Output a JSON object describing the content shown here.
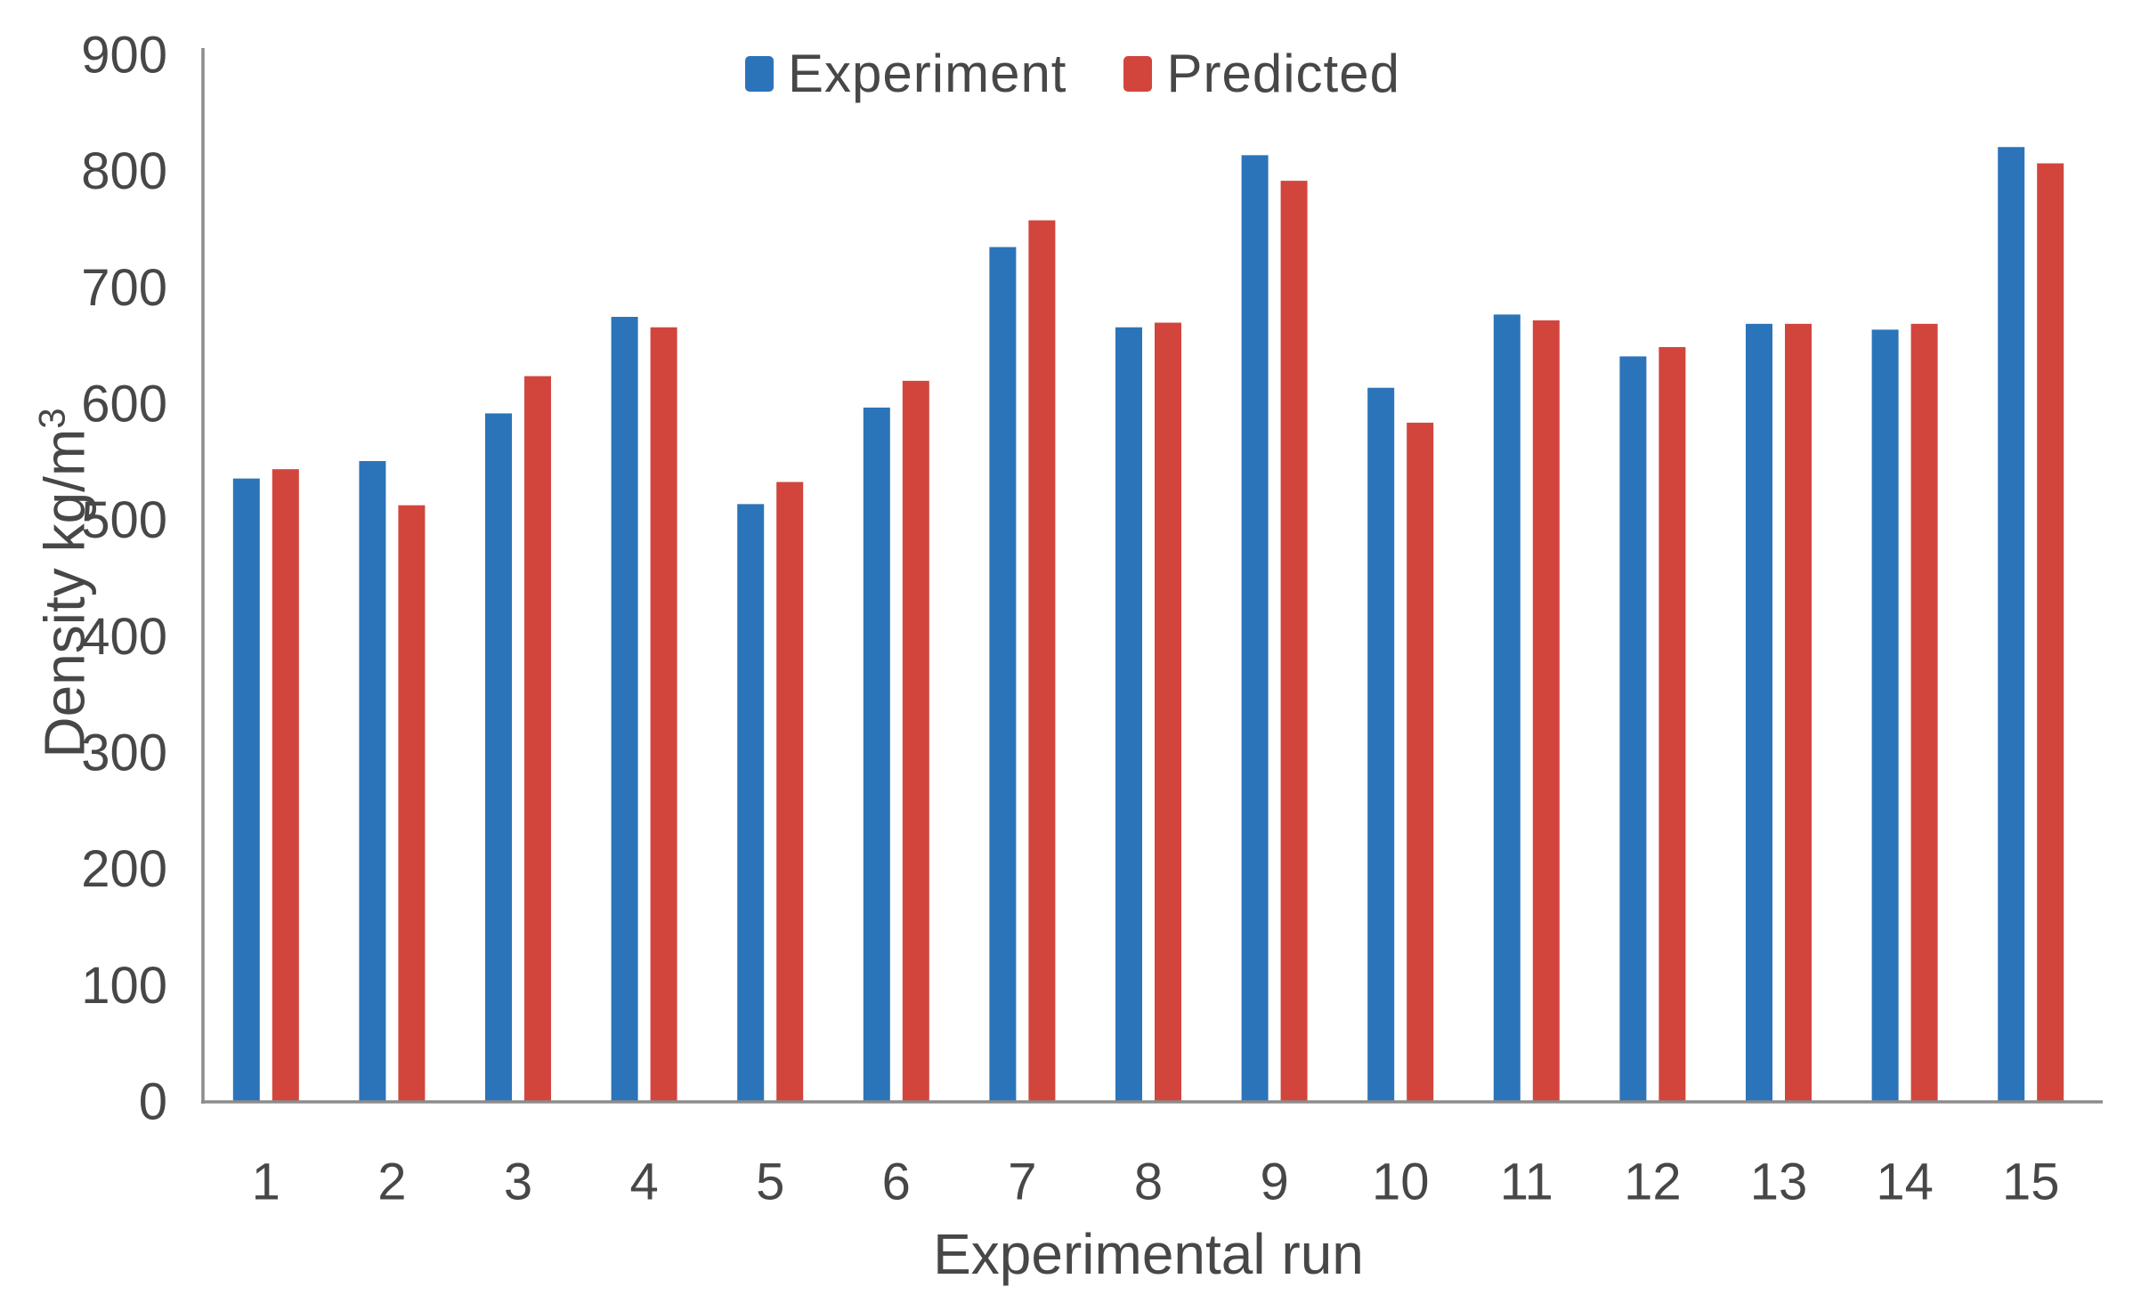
{
  "chart_data": {
    "type": "bar",
    "title": "",
    "categories": [
      "1",
      "2",
      "3",
      "4",
      "5",
      "6",
      "7",
      "8",
      "9",
      "10",
      "11",
      "12",
      "13",
      "14",
      "15"
    ],
    "series": [
      {
        "name": "Experiment",
        "color": "#2B74B9",
        "values": [
          536,
          551,
          592,
          675,
          514,
          597,
          735,
          666,
          814,
          614,
          677,
          641,
          669,
          664,
          821
        ]
      },
      {
        "name": "Predicted",
        "color": "#D2453D",
        "values": [
          544,
          513,
          624,
          666,
          533,
          620,
          758,
          670,
          792,
          584,
          672,
          649,
          669,
          669,
          807
        ]
      }
    ],
    "xlabel": "Experimental run",
    "ylabel_main": "Density kg/m",
    "ylabel_sup": "3",
    "ylim": [
      0,
      900
    ],
    "ytick_step": 100,
    "ytick_labels": [
      "0",
      "100",
      "200",
      "300",
      "400",
      "500",
      "600",
      "700",
      "800",
      "900"
    ],
    "grid": false,
    "legend_position": "top-center",
    "axis_color": "#8C8C8C",
    "text_color": "#474747"
  }
}
